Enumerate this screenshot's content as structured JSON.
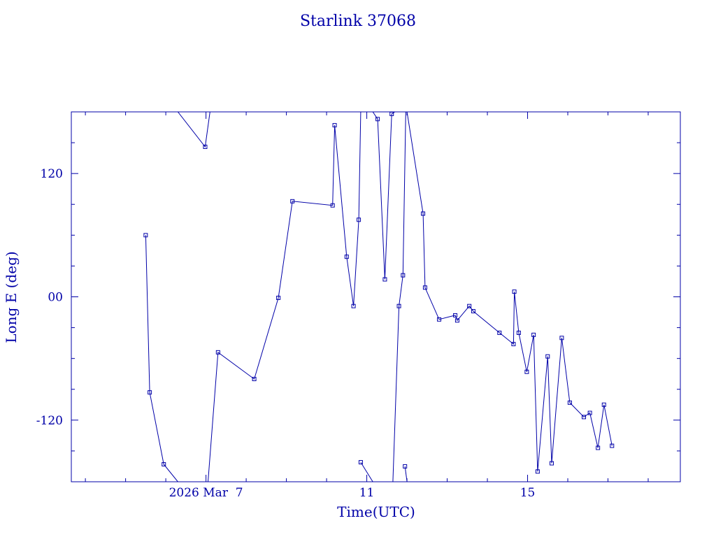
{
  "chart_data": {
    "type": "line",
    "title": "Starlink 37068",
    "xlabel": "Time(UTC)",
    "ylabel": "Long E (deg)",
    "xlim": [
      3.65,
      18.8
    ],
    "ylim": [
      -180,
      180
    ],
    "x_unit": "day of 2026 March",
    "xticks": [
      {
        "value": 7,
        "label": "2026 Mar  7"
      },
      {
        "value": 11,
        "label": "11"
      },
      {
        "value": 15,
        "label": "15"
      }
    ],
    "yticks": [
      {
        "value": 120,
        "label": "120"
      },
      {
        "value": 0,
        "label": "00"
      },
      {
        "value": -120,
        "label": "-120"
      }
    ],
    "grid": false,
    "color": "#0000a8",
    "series": [
      {
        "points": [
          [
            5.5,
            60
          ],
          [
            5.6,
            -93
          ],
          [
            5.95,
            -163
          ],
          [
            6.3,
            -180
          ]
        ]
      },
      {
        "points": [
          [
            6.3,
            180
          ],
          [
            6.98,
            146
          ],
          [
            7.1,
            180
          ]
        ]
      },
      {
        "points": [
          [
            7.05,
            -180
          ],
          [
            7.3,
            -54
          ],
          [
            8.2,
            -80
          ],
          [
            8.8,
            -1
          ],
          [
            9.15,
            93
          ],
          [
            10.15,
            89
          ],
          [
            10.2,
            167
          ],
          [
            10.5,
            39
          ],
          [
            10.67,
            -9
          ],
          [
            10.8,
            75
          ],
          [
            10.85,
            180
          ]
        ]
      },
      {
        "points": [
          [
            10.85,
            -161
          ],
          [
            11.15,
            -180
          ]
        ]
      },
      {
        "points": [
          [
            11.15,
            180
          ],
          [
            11.27,
            173
          ],
          [
            11.45,
            17
          ],
          [
            11.62,
            178
          ],
          [
            11.7,
            180
          ]
        ]
      },
      {
        "points": [
          [
            11.65,
            -180
          ],
          [
            11.8,
            -9
          ],
          [
            11.9,
            21
          ],
          [
            11.97,
            180
          ]
        ]
      },
      {
        "points": [
          [
            11.95,
            -165
          ],
          [
            12.0,
            -180
          ]
        ]
      },
      {
        "points": [
          [
            12.0,
            180
          ],
          [
            12.4,
            81
          ],
          [
            12.45,
            9
          ],
          [
            12.8,
            -22
          ],
          [
            13.2,
            -18
          ],
          [
            13.25,
            -23
          ],
          [
            13.55,
            -9
          ],
          [
            13.65,
            -14
          ],
          [
            14.3,
            -35
          ],
          [
            14.65,
            -46
          ],
          [
            14.67,
            5
          ],
          [
            14.78,
            -35
          ],
          [
            14.98,
            -73
          ],
          [
            15.15,
            -37
          ],
          [
            15.25,
            -170
          ],
          [
            15.5,
            -58
          ],
          [
            15.6,
            -162
          ],
          [
            15.85,
            -40
          ],
          [
            16.05,
            -103
          ],
          [
            16.4,
            -117
          ],
          [
            16.55,
            -113
          ],
          [
            16.75,
            -147
          ],
          [
            16.9,
            -105
          ],
          [
            17.1,
            -145
          ]
        ]
      }
    ]
  }
}
